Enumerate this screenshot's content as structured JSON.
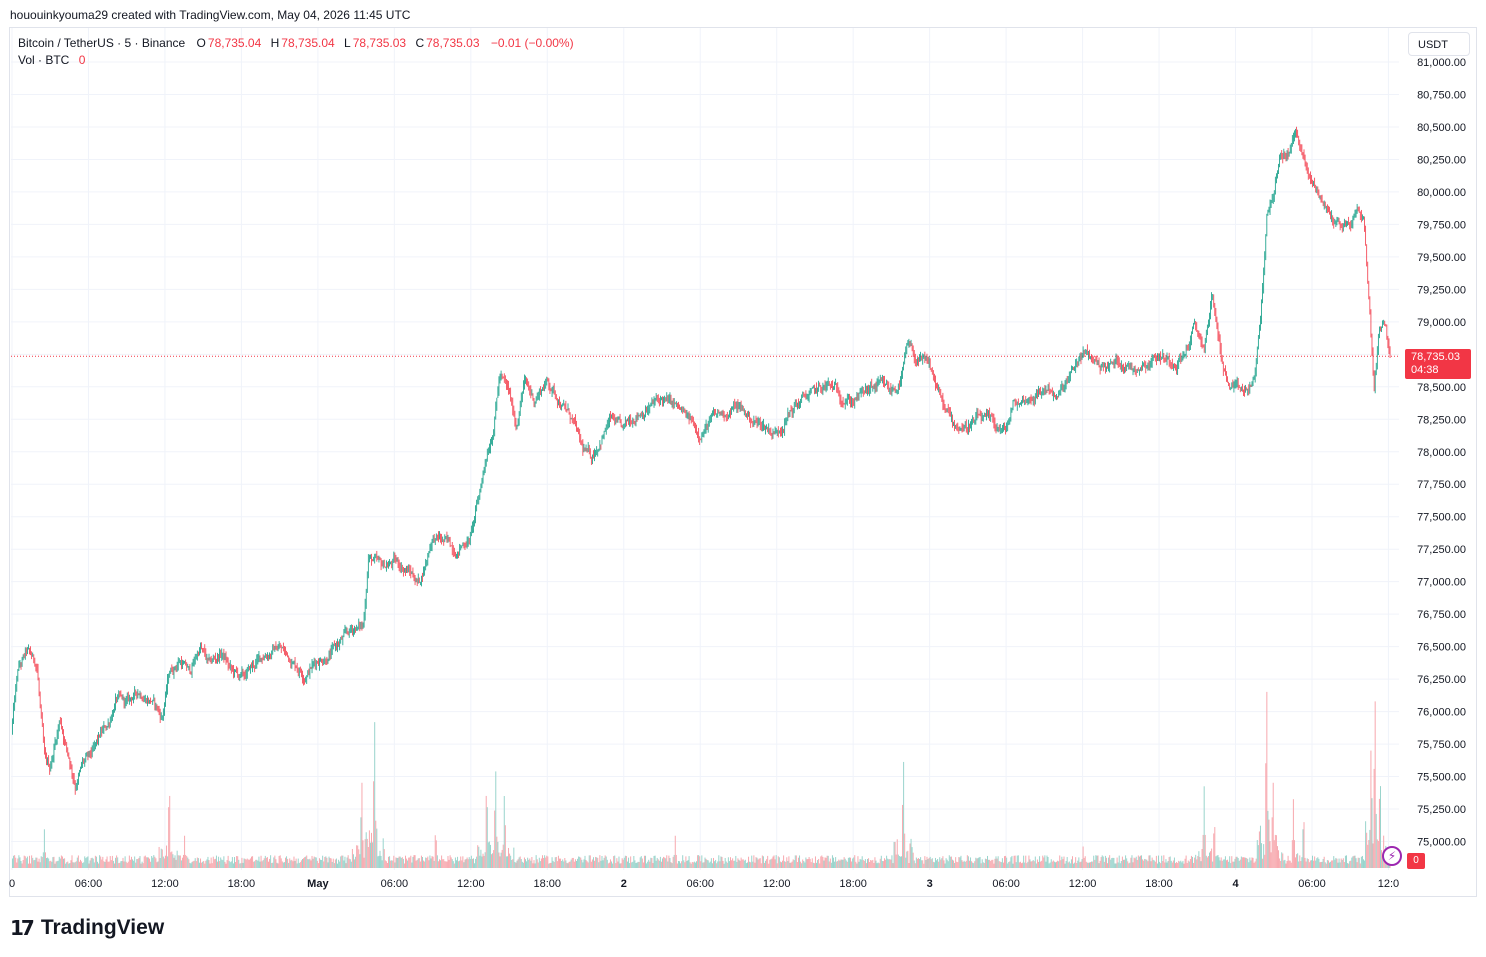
{
  "credit": "hououinkyouma29 created with TradingView.com, May 04, 2026 11:45 UTC",
  "legend": {
    "symbol": "Bitcoin / TetherUS · 5 · Binance",
    "o_label": "O",
    "o_value": "78,735.04",
    "h_label": "H",
    "h_value": "78,735.04",
    "l_label": "L",
    "l_value": "78,735.03",
    "c_label": "C",
    "c_value": "78,735.03",
    "change": "−0.01 (−0.00%)",
    "vol_label": "Vol · BTC",
    "vol_value": "0"
  },
  "currency": "USDT",
  "price_tag": {
    "price": "78,735.03",
    "countdown": "04:38"
  },
  "volume_tag": "0",
  "brand": {
    "mark": "17",
    "word": "TradingView"
  },
  "colors": {
    "up": "#089981",
    "down": "#f23645",
    "vol_up": "#99d4cc",
    "vol_down": "#f7a8ae",
    "grid": "#f0f3fa"
  },
  "chart_data": {
    "type": "candlestick",
    "timeframe": "5",
    "ylim": [
      74800,
      81100
    ],
    "y_ticks": [
      {
        "value": 81000,
        "label": "81,000.00"
      },
      {
        "value": 80750,
        "label": "80,750.00"
      },
      {
        "value": 80500,
        "label": "80,500.00"
      },
      {
        "value": 80250,
        "label": "80,250.00"
      },
      {
        "value": 80000,
        "label": "80,000.00"
      },
      {
        "value": 79750,
        "label": "79,750.00"
      },
      {
        "value": 79500,
        "label": "79,500.00"
      },
      {
        "value": 79250,
        "label": "79,250.00"
      },
      {
        "value": 79000,
        "label": "79,000.00"
      },
      {
        "value": 78750,
        "label": "78,750.00"
      },
      {
        "value": 78500,
        "label": "78,500.00"
      },
      {
        "value": 78250,
        "label": "78,250.00"
      },
      {
        "value": 78000,
        "label": "78,000.00"
      },
      {
        "value": 77750,
        "label": "77,750.00"
      },
      {
        "value": 77500,
        "label": "77,500.00"
      },
      {
        "value": 77250,
        "label": "77,250.00"
      },
      {
        "value": 77000,
        "label": "77,000.00"
      },
      {
        "value": 76750,
        "label": "76,750.00"
      },
      {
        "value": 76500,
        "label": "76,500.00"
      },
      {
        "value": 76250,
        "label": "76,250.00"
      },
      {
        "value": 76000,
        "label": "76,000.00"
      },
      {
        "value": 75750,
        "label": "75,750.00"
      },
      {
        "value": 75500,
        "label": "75,500.00"
      },
      {
        "value": 75250,
        "label": "75,250.00"
      },
      {
        "value": 75000,
        "label": "75,000.00"
      }
    ],
    "x_ticks": [
      {
        "hour": 0,
        "label": "0"
      },
      {
        "hour": 6,
        "label": "06:00"
      },
      {
        "hour": 12,
        "label": "12:00"
      },
      {
        "hour": 18,
        "label": "18:00"
      },
      {
        "hour": 24,
        "label": "May"
      },
      {
        "hour": 30,
        "label": "06:00"
      },
      {
        "hour": 36,
        "label": "12:00"
      },
      {
        "hour": 42,
        "label": "18:00"
      },
      {
        "hour": 48,
        "label": "2"
      },
      {
        "hour": 54,
        "label": "06:00"
      },
      {
        "hour": 60,
        "label": "12:00"
      },
      {
        "hour": 66,
        "label": "18:00"
      },
      {
        "hour": 72,
        "label": "3"
      },
      {
        "hour": 78,
        "label": "06:00"
      },
      {
        "hour": 84,
        "label": "12:00"
      },
      {
        "hour": 90,
        "label": "18:00"
      },
      {
        "hour": 96,
        "label": "4"
      },
      {
        "hour": 102,
        "label": "06:00"
      },
      {
        "hour": 108,
        "label": "12:0"
      }
    ],
    "x_range_hours": [
      0,
      108.2
    ],
    "last_price": 78735.03,
    "price_path": [
      [
        0,
        75850
      ],
      [
        0.5,
        76300
      ],
      [
        1.2,
        76450
      ],
      [
        2,
        76350
      ],
      [
        2.6,
        75600
      ],
      [
        3,
        75550
      ],
      [
        3.8,
        75950
      ],
      [
        4.4,
        75700
      ],
      [
        5,
        75450
      ],
      [
        5.6,
        75600
      ],
      [
        6.3,
        75650
      ],
      [
        7,
        75800
      ],
      [
        7.6,
        75900
      ],
      [
        8.2,
        76100
      ],
      [
        9,
        76050
      ],
      [
        10,
        76150
      ],
      [
        11,
        76100
      ],
      [
        11.8,
        75950
      ],
      [
        12.4,
        76300
      ],
      [
        13.2,
        76400
      ],
      [
        14,
        76300
      ],
      [
        14.8,
        76500
      ],
      [
        15.5,
        76350
      ],
      [
        16.5,
        76450
      ],
      [
        17.3,
        76300
      ],
      [
        18.2,
        76250
      ],
      [
        19,
        76350
      ],
      [
        20,
        76450
      ],
      [
        21,
        76500
      ],
      [
        22,
        76400
      ],
      [
        23,
        76300
      ],
      [
        24,
        76400
      ],
      [
        25,
        76450
      ],
      [
        26,
        76550
      ],
      [
        27,
        76650
      ],
      [
        27.6,
        76650
      ],
      [
        28,
        77200
      ],
      [
        29,
        77100
      ],
      [
        30,
        77150
      ],
      [
        31,
        77100
      ],
      [
        32,
        77000
      ],
      [
        32.5,
        77150
      ],
      [
        33,
        77350
      ],
      [
        34,
        77300
      ],
      [
        35,
        77250
      ],
      [
        36,
        77350
      ],
      [
        36.6,
        77600
      ],
      [
        37.2,
        77950
      ],
      [
        37.8,
        78200
      ],
      [
        38.3,
        78600
      ],
      [
        39,
        78450
      ],
      [
        39.6,
        78200
      ],
      [
        40.2,
        78550
      ],
      [
        41,
        78400
      ],
      [
        42,
        78550
      ],
      [
        43,
        78400
      ],
      [
        44,
        78250
      ],
      [
        44.8,
        78000
      ],
      [
        45.5,
        77950
      ],
      [
        46.2,
        78100
      ],
      [
        47,
        78250
      ],
      [
        48,
        78150
      ],
      [
        49,
        78300
      ],
      [
        50,
        78350
      ],
      [
        51,
        78400
      ],
      [
        52,
        78350
      ],
      [
        53,
        78250
      ],
      [
        54,
        78150
      ],
      [
        55,
        78250
      ],
      [
        56,
        78300
      ],
      [
        57,
        78350
      ],
      [
        58,
        78250
      ],
      [
        59,
        78200
      ],
      [
        60,
        78150
      ],
      [
        61,
        78300
      ],
      [
        62,
        78400
      ],
      [
        63,
        78450
      ],
      [
        64,
        78500
      ],
      [
        65,
        78450
      ],
      [
        66,
        78400
      ],
      [
        67,
        78450
      ],
      [
        68,
        78500
      ],
      [
        69,
        78450
      ],
      [
        69.8,
        78550
      ],
      [
        70.3,
        78800
      ],
      [
        71,
        78700
      ],
      [
        72,
        78650
      ],
      [
        72.6,
        78500
      ],
      [
        73.3,
        78300
      ],
      [
        74,
        78200
      ],
      [
        75,
        78200
      ],
      [
        76,
        78250
      ],
      [
        77,
        78200
      ],
      [
        78,
        78150
      ],
      [
        78.6,
        78350
      ],
      [
        79.5,
        78400
      ],
      [
        80.5,
        78450
      ],
      [
        81.5,
        78500
      ],
      [
        82,
        78400
      ],
      [
        83,
        78550
      ],
      [
        84,
        78750
      ],
      [
        85,
        78700
      ],
      [
        86,
        78650
      ],
      [
        87,
        78700
      ],
      [
        88,
        78650
      ],
      [
        89,
        78700
      ],
      [
        90,
        78750
      ],
      [
        91,
        78700
      ],
      [
        92,
        78750
      ],
      [
        92.8,
        78950
      ],
      [
        93.6,
        78800
      ],
      [
        94.2,
        79200
      ],
      [
        95,
        78700
      ],
      [
        95.5,
        78500
      ],
      [
        96.2,
        78450
      ],
      [
        97,
        78450
      ],
      [
        97.6,
        78600
      ],
      [
        98,
        79000
      ],
      [
        98.5,
        79800
      ],
      [
        99,
        80000
      ],
      [
        99.6,
        80250
      ],
      [
        100.2,
        80300
      ],
      [
        100.7,
        80450
      ],
      [
        101.2,
        80350
      ],
      [
        101.8,
        80100
      ],
      [
        102.5,
        80000
      ],
      [
        103,
        79900
      ],
      [
        103.6,
        79800
      ],
      [
        104.3,
        79750
      ],
      [
        105,
        79750
      ],
      [
        105.6,
        79850
      ],
      [
        106.1,
        79800
      ],
      [
        106.5,
        79200
      ],
      [
        106.9,
        78500
      ],
      [
        107.3,
        78950
      ],
      [
        107.7,
        79050
      ],
      [
        108.2,
        78735
      ]
    ],
    "volume_spikes": [
      [
        2.5,
        0.18
      ],
      [
        12.3,
        0.44
      ],
      [
        13.5,
        0.15
      ],
      [
        27.4,
        0.45
      ],
      [
        28.4,
        0.77
      ],
      [
        33.2,
        0.2
      ],
      [
        37.2,
        0.44
      ],
      [
        37.9,
        0.51
      ],
      [
        38.6,
        0.38
      ],
      [
        52,
        0.15
      ],
      [
        69.9,
        0.56
      ],
      [
        84,
        0.1
      ],
      [
        93.5,
        0.38
      ],
      [
        94.3,
        0.25
      ],
      [
        98.4,
        0.93
      ],
      [
        98.9,
        0.45
      ],
      [
        100.5,
        0.32
      ],
      [
        101.3,
        0.28
      ],
      [
        106.6,
        0.62
      ],
      [
        106.9,
        0.88
      ],
      [
        107.3,
        0.5
      ]
    ]
  }
}
